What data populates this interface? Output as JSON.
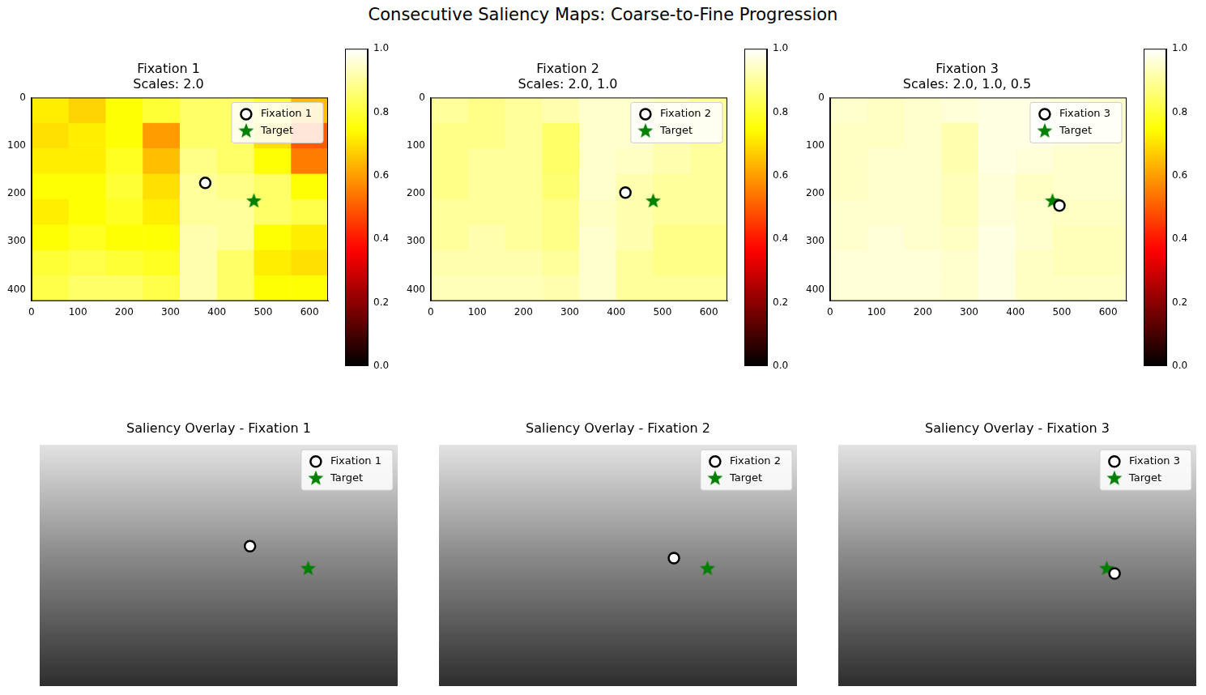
{
  "title": "Consecutive Saliency Maps: Coarse-to-Fine Progression",
  "chart_data": [
    {
      "type": "heatmap",
      "title": "Fixation 1",
      "subtitle": "Scales: 2.0",
      "xlim": [
        0,
        640
      ],
      "ylim": [
        424,
        0
      ],
      "xticks": [
        0,
        100,
        200,
        300,
        400,
        500,
        600
      ],
      "yticks": [
        0,
        100,
        200,
        300,
        400
      ],
      "grid": false,
      "legend": "upper right",
      "heatmap": {
        "x_edges": [
          0,
          80,
          160,
          240,
          320,
          400,
          480,
          560,
          640
        ],
        "y_edges": [
          0,
          53,
          106,
          159,
          212,
          265,
          318,
          371,
          424
        ],
        "cells": [
          [
            0.72,
            0.68,
            0.75,
            0.8,
            0.85,
            0.85,
            0.8,
            0.65
          ],
          [
            0.7,
            0.72,
            0.75,
            0.6,
            0.85,
            0.85,
            0.7,
            0.5
          ],
          [
            0.72,
            0.72,
            0.78,
            0.65,
            0.88,
            0.85,
            0.75,
            0.55
          ],
          [
            0.75,
            0.75,
            0.8,
            0.7,
            0.9,
            0.88,
            0.85,
            0.75
          ],
          [
            0.72,
            0.75,
            0.78,
            0.72,
            0.9,
            0.9,
            0.85,
            0.82
          ],
          [
            0.75,
            0.78,
            0.75,
            0.75,
            0.92,
            0.9,
            0.75,
            0.72
          ],
          [
            0.8,
            0.82,
            0.8,
            0.78,
            0.92,
            0.85,
            0.72,
            0.7
          ],
          [
            0.82,
            0.85,
            0.85,
            0.82,
            0.92,
            0.85,
            0.75,
            0.75
          ]
        ]
      },
      "colorbar": {
        "range": [
          0,
          1
        ],
        "ticks": [
          {
            "value": 0,
            "label": "0.0"
          },
          {
            "value": 0.2,
            "label": "0.2"
          },
          {
            "value": 0.4,
            "label": "0.4"
          },
          {
            "value": 0.6,
            "label": "0.6"
          },
          {
            "value": 0.8,
            "label": "0.8"
          },
          {
            "value": 1,
            "label": "1.0"
          }
        ]
      },
      "series": [
        {
          "name": "Fixation 1",
          "color": "#000000",
          "marker": "circle",
          "x": [
            375
          ],
          "y": [
            178
          ]
        },
        {
          "name": "Target",
          "color": "#008000",
          "marker": "star",
          "x": [
            480
          ],
          "y": [
            215
          ]
        }
      ]
    },
    {
      "type": "heatmap",
      "title": "Fixation 2",
      "subtitle": "Scales: 2.0, 1.0",
      "xlim": [
        0,
        640
      ],
      "ylim": [
        424,
        0
      ],
      "xticks": [
        0,
        100,
        200,
        300,
        400,
        500,
        600
      ],
      "yticks": [
        0,
        100,
        200,
        300,
        400
      ],
      "grid": false,
      "legend": "upper right",
      "heatmap": {
        "x_edges": [
          0,
          80,
          160,
          240,
          320,
          400,
          480,
          560,
          640
        ],
        "y_edges": [
          0,
          53,
          106,
          159,
          212,
          265,
          318,
          371,
          424
        ],
        "cells": [
          [
            0.9,
            0.88,
            0.9,
            0.92,
            0.95,
            0.95,
            0.93,
            0.9
          ],
          [
            0.88,
            0.88,
            0.9,
            0.85,
            0.95,
            0.95,
            0.92,
            0.9
          ],
          [
            0.88,
            0.9,
            0.9,
            0.85,
            0.95,
            0.94,
            0.92,
            0.9
          ],
          [
            0.88,
            0.9,
            0.9,
            0.86,
            0.95,
            0.92,
            0.9,
            0.9
          ],
          [
            0.9,
            0.9,
            0.9,
            0.88,
            0.94,
            0.92,
            0.9,
            0.9
          ],
          [
            0.9,
            0.92,
            0.9,
            0.88,
            0.95,
            0.92,
            0.88,
            0.88
          ],
          [
            0.92,
            0.92,
            0.92,
            0.9,
            0.95,
            0.9,
            0.88,
            0.88
          ],
          [
            0.93,
            0.93,
            0.93,
            0.92,
            0.95,
            0.9,
            0.9,
            0.9
          ]
        ]
      },
      "colorbar": {
        "range": [
          0,
          1
        ],
        "ticks": [
          {
            "value": 0,
            "label": "0.0"
          },
          {
            "value": 0.2,
            "label": "0.2"
          },
          {
            "value": 0.4,
            "label": "0.4"
          },
          {
            "value": 0.6,
            "label": "0.6"
          },
          {
            "value": 0.8,
            "label": "0.8"
          },
          {
            "value": 1,
            "label": "1.0"
          }
        ]
      },
      "series": [
        {
          "name": "Fixation 2",
          "color": "#000000",
          "marker": "circle",
          "x": [
            420
          ],
          "y": [
            198
          ]
        },
        {
          "name": "Target",
          "color": "#008000",
          "marker": "star",
          "x": [
            480
          ],
          "y": [
            215
          ]
        }
      ]
    },
    {
      "type": "heatmap",
      "title": "Fixation 3",
      "subtitle": "Scales: 2.0, 1.0, 0.5",
      "xlim": [
        0,
        640
      ],
      "ylim": [
        424,
        0
      ],
      "xticks": [
        0,
        100,
        200,
        300,
        400,
        500,
        600
      ],
      "yticks": [
        0,
        100,
        200,
        300,
        400
      ],
      "grid": false,
      "legend": "upper right",
      "heatmap": {
        "x_edges": [
          0,
          80,
          160,
          240,
          320,
          400,
          480,
          560,
          640
        ],
        "y_edges": [
          0,
          53,
          106,
          159,
          212,
          265,
          318,
          371,
          424
        ],
        "cells": [
          [
            0.95,
            0.94,
            0.95,
            0.96,
            0.97,
            0.97,
            0.96,
            0.95
          ],
          [
            0.94,
            0.94,
            0.95,
            0.92,
            0.97,
            0.97,
            0.96,
            0.95
          ],
          [
            0.94,
            0.95,
            0.95,
            0.92,
            0.97,
            0.96,
            0.95,
            0.95
          ],
          [
            0.94,
            0.95,
            0.95,
            0.93,
            0.96,
            0.94,
            0.95,
            0.95
          ],
          [
            0.95,
            0.95,
            0.95,
            0.93,
            0.96,
            0.95,
            0.94,
            0.94
          ],
          [
            0.95,
            0.96,
            0.95,
            0.94,
            0.97,
            0.95,
            0.93,
            0.93
          ],
          [
            0.96,
            0.96,
            0.96,
            0.95,
            0.97,
            0.94,
            0.93,
            0.93
          ],
          [
            0.96,
            0.96,
            0.96,
            0.95,
            0.97,
            0.94,
            0.94,
            0.94
          ]
        ]
      },
      "colorbar": {
        "range": [
          0,
          1
        ],
        "ticks": [
          {
            "value": 0,
            "label": "0.0"
          },
          {
            "value": 0.2,
            "label": "0.2"
          },
          {
            "value": 0.4,
            "label": "0.4"
          },
          {
            "value": 0.6,
            "label": "0.6"
          },
          {
            "value": 0.8,
            "label": "0.8"
          },
          {
            "value": 1,
            "label": "1.0"
          }
        ]
      },
      "series": [
        {
          "name": "Fixation 3",
          "color": "#000000",
          "marker": "circle",
          "x": [
            495
          ],
          "y": [
            225
          ]
        },
        {
          "name": "Target",
          "color": "#008000",
          "marker": "star",
          "x": [
            480
          ],
          "y": [
            215
          ]
        }
      ]
    },
    {
      "type": "scatter",
      "title": "Saliency Overlay - Fixation 1",
      "xlim": [
        0,
        640
      ],
      "ylim": [
        424,
        0
      ],
      "tick_labels": false,
      "grid": false,
      "legend": "upper right",
      "series": [
        {
          "name": "Fixation 1",
          "color": "#000000",
          "marker": "circle",
          "x": [
            376
          ],
          "y": [
            178
          ]
        },
        {
          "name": "Target",
          "color": "#008000",
          "marker": "star",
          "x": [
            480
          ],
          "y": [
            217
          ]
        }
      ]
    },
    {
      "type": "scatter",
      "title": "Saliency Overlay - Fixation 2",
      "xlim": [
        0,
        640
      ],
      "ylim": [
        424,
        0
      ],
      "tick_labels": false,
      "grid": false,
      "legend": "upper right",
      "series": [
        {
          "name": "Fixation 2",
          "color": "#000000",
          "marker": "circle",
          "x": [
            420
          ],
          "y": [
            199
          ]
        },
        {
          "name": "Target",
          "color": "#008000",
          "marker": "star",
          "x": [
            480
          ],
          "y": [
            217
          ]
        }
      ]
    },
    {
      "type": "scatter",
      "title": "Saliency Overlay - Fixation 3",
      "xlim": [
        0,
        640
      ],
      "ylim": [
        424,
        0
      ],
      "tick_labels": false,
      "grid": false,
      "legend": "upper right",
      "series": [
        {
          "name": "Fixation 3",
          "color": "#000000",
          "marker": "circle",
          "x": [
            494
          ],
          "y": [
            226
          ]
        },
        {
          "name": "Target",
          "color": "#008000",
          "marker": "star",
          "x": [
            480
          ],
          "y": [
            217
          ]
        }
      ]
    }
  ]
}
